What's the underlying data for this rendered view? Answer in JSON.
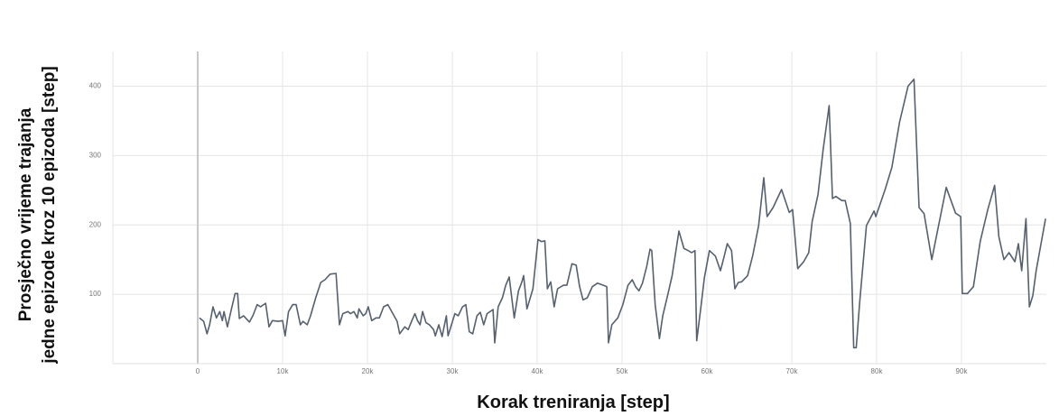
{
  "chart_data": {
    "type": "line",
    "x_label": "Korak treniranja [step]",
    "y_label": [
      "Prosječno vrijeme trajanja",
      "jedne epizode kroz 10 epizoda [step]"
    ],
    "x": [
      200,
      700,
      1100,
      1400,
      1800,
      2200,
      2600,
      2900,
      3100,
      3500,
      3900,
      4400,
      4700,
      4900,
      5400,
      6100,
      6500,
      7000,
      7400,
      8000,
      8400,
      8800,
      9500,
      10000,
      10300,
      10700,
      11200,
      11600,
      12100,
      12400,
      12900,
      13300,
      13900,
      14500,
      15000,
      15600,
      16300,
      16700,
      17100,
      17700,
      18000,
      18400,
      18800,
      19000,
      19500,
      19800,
      20100,
      20500,
      21000,
      21400,
      21900,
      22400,
      23000,
      23500,
      23800,
      24400,
      24800,
      25200,
      25600,
      25900,
      26200,
      26500,
      26900,
      27300,
      27800,
      28000,
      28400,
      28800,
      29300,
      29500,
      29900,
      30300,
      30700,
      31200,
      31600,
      32000,
      32400,
      32900,
      33300,
      33700,
      34100,
      34800,
      35000,
      35400,
      35900,
      36300,
      36700,
      37300,
      37800,
      38200,
      38400,
      38800,
      39500,
      40100,
      40500,
      40900,
      41200,
      41600,
      42000,
      42400,
      43100,
      43500,
      44100,
      44600,
      45000,
      45400,
      45900,
      46500,
      47100,
      47800,
      48200,
      48400,
      48800,
      49500,
      50100,
      50700,
      51200,
      51600,
      52000,
      52400,
      52900,
      53300,
      53500,
      53900,
      54400,
      54800,
      55400,
      55900,
      56700,
      57300,
      57800,
      58200,
      58600,
      58800,
      59300,
      59700,
      60300,
      61000,
      61600,
      62000,
      62400,
      62900,
      63300,
      63700,
      64100,
      64800,
      65400,
      66100,
      66700,
      67100,
      67800,
      68800,
      69700,
      70100,
      70700,
      71400,
      72000,
      72400,
      73100,
      73700,
      74400,
      74800,
      75200,
      75900,
      76300,
      76900,
      77300,
      77600,
      78000,
      78800,
      79700,
      79900,
      81000,
      81800,
      82700,
      83700,
      84400,
      85000,
      85600,
      86500,
      87300,
      88200,
      89300,
      89900,
      90100,
      90700,
      91400,
      92200,
      93100,
      93900,
      94400,
      95000,
      95600,
      96300,
      96700,
      97100,
      97600,
      98000,
      98400,
      98800,
      99900
    ],
    "series": [
      {
        "color": "#56606f",
        "values": [
          66,
          61,
          43,
          56,
          82,
          66,
          75,
          62,
          75,
          53,
          75,
          101,
          101,
          65,
          69,
          60,
          69,
          85,
          82,
          87,
          53,
          62,
          61,
          62,
          40,
          75,
          85,
          85,
          56,
          61,
          56,
          69,
          95,
          117,
          121,
          129,
          130,
          56,
          72,
          75,
          72,
          75,
          66,
          79,
          69,
          72,
          82,
          62,
          66,
          66,
          82,
          85,
          72,
          61,
          43,
          53,
          49,
          61,
          72,
          62,
          56,
          75,
          59,
          56,
          49,
          40,
          56,
          39,
          69,
          40,
          56,
          72,
          69,
          82,
          85,
          46,
          43,
          69,
          74,
          56,
          72,
          78,
          30,
          82,
          95,
          113,
          125,
          66,
          105,
          118,
          127,
          79,
          108,
          179,
          176,
          177,
          108,
          118,
          82,
          108,
          113,
          113,
          144,
          142,
          111,
          92,
          95,
          111,
          116,
          113,
          111,
          30,
          56,
          66,
          85,
          113,
          121,
          111,
          105,
          116,
          140,
          165,
          163,
          85,
          36,
          69,
          100,
          127,
          191,
          166,
          163,
          160,
          163,
          33,
          82,
          124,
          163,
          155,
          134,
          153,
          173,
          163,
          108,
          117,
          118,
          127,
          156,
          199,
          268,
          212,
          225,
          251,
          218,
          222,
          137,
          147,
          160,
          205,
          244,
          309,
          372,
          238,
          241,
          235,
          235,
          202,
          23,
          23,
          88,
          199,
          220,
          212,
          251,
          283,
          348,
          400,
          410,
          225,
          216,
          150,
          199,
          254,
          217,
          212,
          101,
          101,
          111,
          176,
          222,
          257,
          183,
          150,
          160,
          147,
          173,
          134,
          209,
          82,
          98,
          134,
          209
        ]
      }
    ],
    "xlim": [
      -10000,
      100000
    ],
    "xticks": [
      0,
      {
        "value": 10000,
        "label": "10k"
      },
      {
        "value": 20000,
        "label": "20k"
      },
      {
        "value": 30000,
        "label": "30k"
      },
      {
        "value": 40000,
        "label": "40k"
      },
      {
        "value": 50000,
        "label": "50k"
      },
      {
        "value": 60000,
        "label": "60k"
      },
      {
        "value": 70000,
        "label": "70k"
      },
      {
        "value": 80000,
        "label": "80k"
      },
      {
        "value": 90000,
        "label": "90k"
      }
    ],
    "ylim": [
      0,
      450
    ],
    "yticks": [
      100,
      200,
      300,
      400
    ],
    "grid": true
  }
}
